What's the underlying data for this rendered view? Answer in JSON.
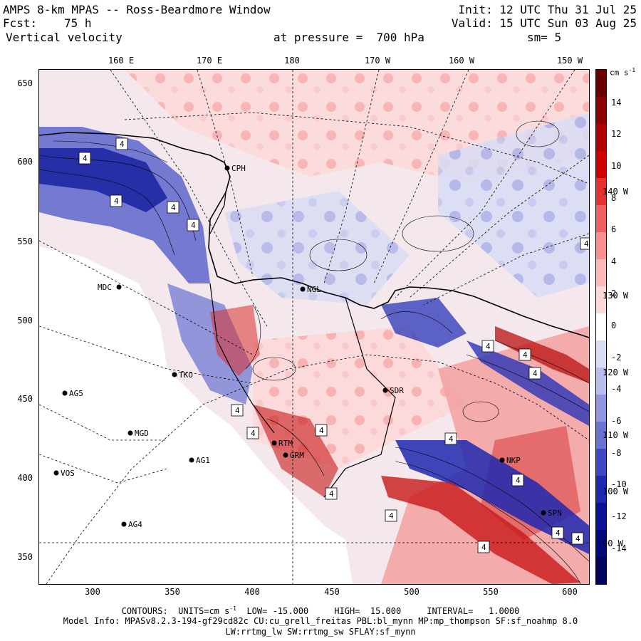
{
  "header": {
    "line1_left": "AMPS 8-km MPAS -- Ross-Beardmore Window",
    "line1_right": "Init: 12 UTC Thu 31 Jul 25",
    "line2_left_label": "Fcst:",
    "line2_left_value": "75 h",
    "line2_right": "Valid: 15 UTC Sun 03 Aug 25",
    "line3_left": "Vertical velocity",
    "line3_center": "at pressure =  700 hPa",
    "line3_right": "sm= 5"
  },
  "axes": {
    "top_lon_labels": [
      "160 E",
      "170 E",
      "180",
      "170 W",
      "160 W",
      "150 W"
    ],
    "left_y_labels": [
      "650",
      "600",
      "550",
      "500",
      "450",
      "400",
      "350"
    ],
    "bottom_x_labels": [
      "300",
      "350",
      "400",
      "450",
      "500",
      "550",
      "600"
    ],
    "right_lon_labels": [
      "140 W",
      "130 W",
      "120 W",
      "110 W",
      "100 W",
      "90 W"
    ]
  },
  "colorbar": {
    "unit": "cm s",
    "unit_exp": "-1",
    "labels": [
      "14",
      "12",
      "10",
      "8",
      "6",
      "4",
      "2",
      "0",
      "-2",
      "-4",
      "-6",
      "-8",
      "-10",
      "-12",
      "-14"
    ],
    "colors": [
      "#6b0000",
      "#8b0000",
      "#b00000",
      "#d00000",
      "#e83030",
      "#f06060",
      "#f89090",
      "#fbb8b8",
      "#fdd8d8",
      "#ffffff",
      "#d8dcf4",
      "#b8bdec",
      "#9097e0",
      "#6a72d4",
      "#3f48c4",
      "#1f28b0",
      "#0b1298",
      "#03087a",
      "#00045a"
    ]
  },
  "stations": [
    {
      "name": "MDC"
    },
    {
      "name": "NGL"
    },
    {
      "name": "CPH"
    },
    {
      "name": "TKO"
    },
    {
      "name": "AG5"
    },
    {
      "name": "MGD"
    },
    {
      "name": "AG1"
    },
    {
      "name": "VOS"
    },
    {
      "name": "AG4"
    },
    {
      "name": "GRM"
    },
    {
      "name": "RTM"
    },
    {
      "name": "SDR"
    },
    {
      "name": "SPN"
    },
    {
      "name": "NKP"
    }
  ],
  "contour_box_label": "4",
  "footer": {
    "contours_line": "CONTOURS:  UNITS=cm s",
    "contours_exp": "-1",
    "contours_rest": "  LOW= -15.000     HIGH=  15.000     INTERVAL=   1.0000",
    "model_info": "Model Info: MPASv8.2.3-194-gf29cd82c CU:cu_grell_freitas PBL:bl_mynn MP:mp_thompson SF:sf_noahmp 8.0",
    "model_info2": "LW:rrtmg_lw SW:rrtmg_sw SFLAY:sf_mynn"
  }
}
